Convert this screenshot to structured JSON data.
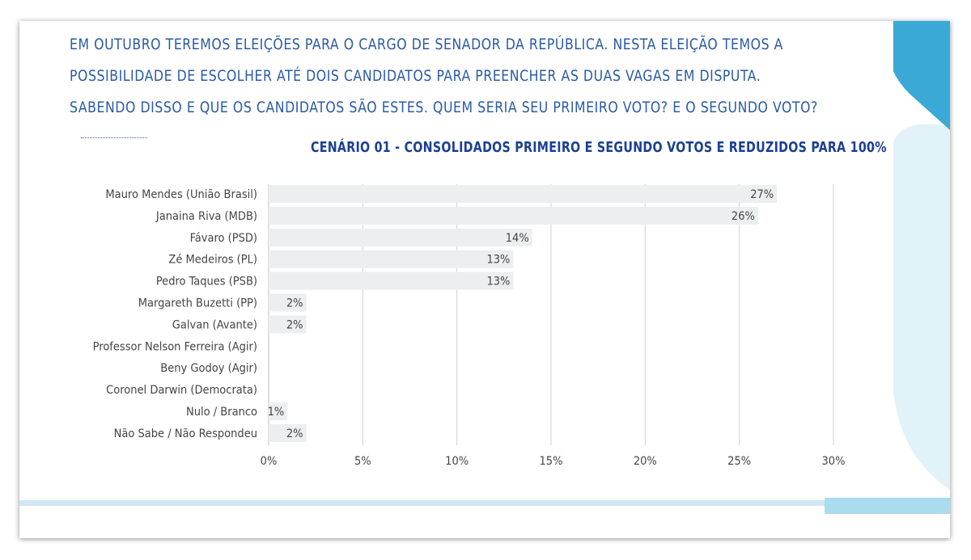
{
  "question": {
    "line1": "EM OUTUBRO TEREMOS ELEIÇÕES PARA O CARGO DE SENADOR DA REPÚBLICA. NESTA ELEIÇÃO TEMOS A",
    "line2": "POSSIBILIDADE DE ESCOLHER ATÉ DOIS CANDIDATOS PARA PREENCHER AS DUAS VAGAS EM DISPUTA.",
    "line3": "SABENDO DISSO E QUE OS CANDIDATOS SÃO ESTES. QUEM SERIA SEU PRIMEIRO VOTO? E O SEGUNDO VOTO?"
  },
  "colors": {
    "bar": "#eceeef",
    "grid": "#d0d0d0",
    "question_text": "#2a5aa6",
    "title_text": "#1c3f94",
    "accent_dark": "#3aa9d6",
    "accent_light": "#dff1f8"
  },
  "chart_data": {
    "type": "bar",
    "orientation": "horizontal",
    "title": "CENÁRIO 01 - CONSOLIDADOS PRIMEIRO E SEGUNDO VOTOS E REDUZIDOS PARA 100%",
    "categories": [
      "Mauro Mendes (União Brasil)",
      "Janaina Riva (MDB)",
      "Fávaro (PSD)",
      "Zé Medeiros (PL)",
      "Pedro Taques (PSB)",
      "Margareth Buzetti (PP)",
      "Galvan (Avante)",
      "Professor Nelson Ferreira (Agir)",
      "Beny Godoy (Agir)",
      "Coronel Darwin (Democrata)",
      "Nulo / Branco",
      "Não Sabe / Não Respondeu"
    ],
    "values": [
      27,
      26,
      14,
      13,
      13,
      2,
      2,
      null,
      null,
      null,
      1,
      2
    ],
    "data_labels": [
      "27%",
      "26%",
      "14%",
      "13%",
      "13%",
      "2%",
      "2%",
      "",
      "",
      "",
      "1%",
      "2%"
    ],
    "xlim": [
      0,
      30
    ],
    "xticks": [
      0,
      5,
      10,
      15,
      20,
      25,
      30
    ],
    "xtick_labels": [
      "0%",
      "5%",
      "10%",
      "15%",
      "20%",
      "25%",
      "30%"
    ],
    "grid": "vertical"
  }
}
